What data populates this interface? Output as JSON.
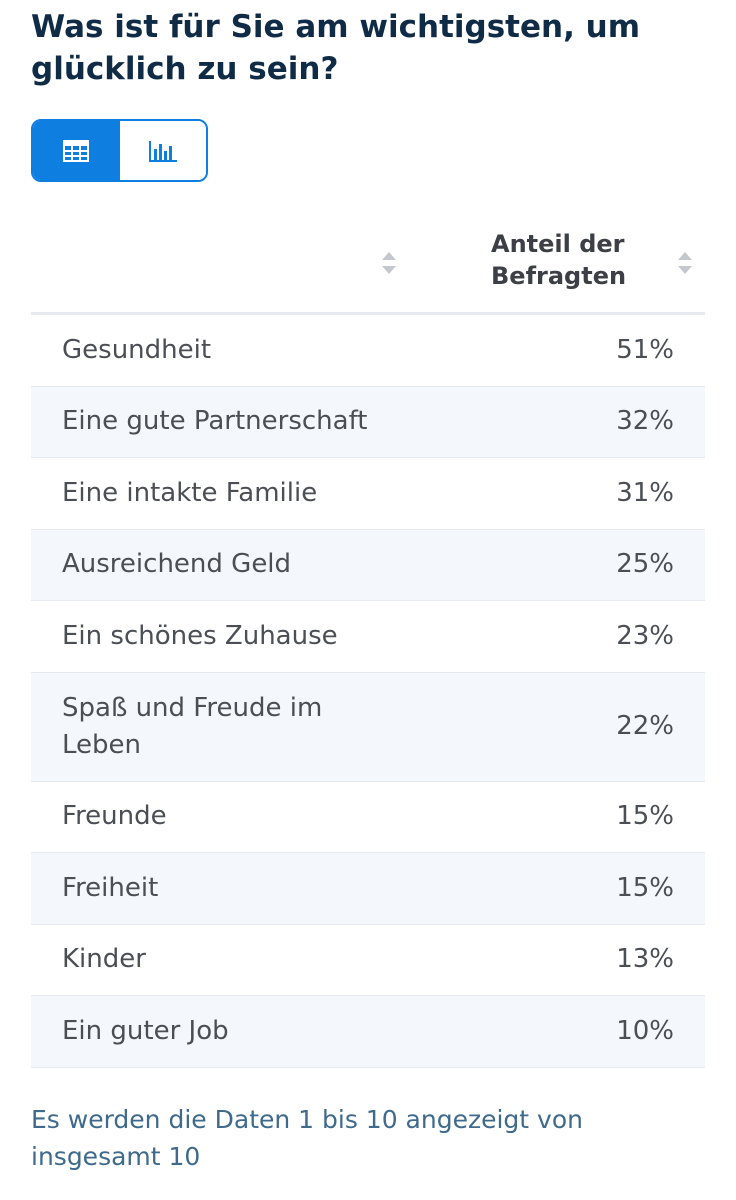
{
  "title": "Was ist für Sie am wichtigsten, um glücklich zu sein?",
  "view_toggle": {
    "table_icon": "table-icon",
    "chart_icon": "bar-chart-icon",
    "active": "table"
  },
  "colors": {
    "accent": "#0e7ee0",
    "title": "#0f2b46",
    "row_alt": "#f4f7fb",
    "footer": "#3f6a8c"
  },
  "table": {
    "column_header": "Anteil der Befragten",
    "rows": [
      {
        "label": "Gesundheit",
        "value": "51%"
      },
      {
        "label": "Eine gute Partnerschaft",
        "value": "32%"
      },
      {
        "label": "Eine intakte Familie",
        "value": "31%"
      },
      {
        "label": "Ausreichend Geld",
        "value": "25%"
      },
      {
        "label": "Ein schönes Zuhause",
        "value": "23%"
      },
      {
        "label": "Spaß und Freude im Leben",
        "value": "22%"
      },
      {
        "label": "Freunde",
        "value": "15%"
      },
      {
        "label": "Freiheit",
        "value": "15%"
      },
      {
        "label": "Kinder",
        "value": "13%"
      },
      {
        "label": "Ein guter Job",
        "value": "10%"
      }
    ]
  },
  "footer": "Es werden die Daten 1 bis 10 angezeigt von insgesamt 10"
}
